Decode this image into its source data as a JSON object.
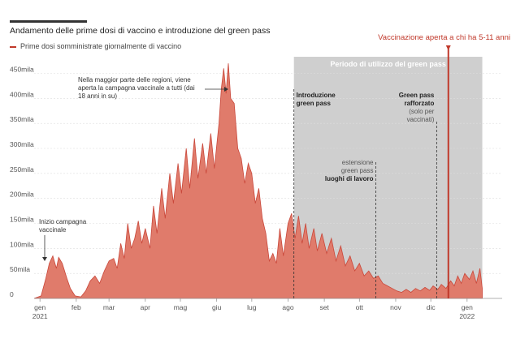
{
  "title": "Andamento delle prime dosi di vaccino e introduzione del green pass",
  "legend_label": "Prime dosi somministrate giornalmente di vaccino",
  "colors": {
    "area_fill": "#e07b6b",
    "area_stroke": "#c9473a",
    "greenpass_band": "#cfcfcf",
    "vaccination_line": "#c0392b",
    "axis_text": "#555555"
  },
  "chart_data": {
    "type": "area",
    "title": "Andamento delle prime dosi di vaccino e introduzione del green pass",
    "xlabel": "",
    "ylabel": "",
    "x_domain": [
      "2020-12-27",
      "2022-01-31"
    ],
    "ylim": [
      0,
      480000
    ],
    "y_ticks": [
      {
        "value": 0,
        "label": "0"
      },
      {
        "value": 50000,
        "label": "50mila"
      },
      {
        "value": 100000,
        "label": "100mila"
      },
      {
        "value": 150000,
        "label": "150mila"
      },
      {
        "value": 200000,
        "label": "200mila"
      },
      {
        "value": 250000,
        "label": "250mila"
      },
      {
        "value": 300000,
        "label": "300mila"
      },
      {
        "value": 350000,
        "label": "350mila"
      },
      {
        "value": 400000,
        "label": "400mila"
      },
      {
        "value": 450000,
        "label": "450mila"
      }
    ],
    "x_ticks": [
      {
        "date": "2021-01-01",
        "label": "gen",
        "sublabel": "2021"
      },
      {
        "date": "2021-02-01",
        "label": "feb",
        "sublabel": ""
      },
      {
        "date": "2021-03-01",
        "label": "mar",
        "sublabel": ""
      },
      {
        "date": "2021-04-01",
        "label": "apr",
        "sublabel": ""
      },
      {
        "date": "2021-05-01",
        "label": "mag",
        "sublabel": ""
      },
      {
        "date": "2021-06-01",
        "label": "giu",
        "sublabel": ""
      },
      {
        "date": "2021-07-01",
        "label": "lug",
        "sublabel": ""
      },
      {
        "date": "2021-08-01",
        "label": "ago",
        "sublabel": ""
      },
      {
        "date": "2021-09-01",
        "label": "set",
        "sublabel": ""
      },
      {
        "date": "2021-10-01",
        "label": "ott",
        "sublabel": ""
      },
      {
        "date": "2021-11-01",
        "label": "nov",
        "sublabel": ""
      },
      {
        "date": "2021-12-01",
        "label": "dic",
        "sublabel": ""
      },
      {
        "date": "2022-01-01",
        "label": "gen",
        "sublabel": "2022"
      }
    ],
    "series": [
      {
        "values": [
          [
            "2020-12-27",
            0
          ],
          [
            "2021-01-02",
            5000
          ],
          [
            "2021-01-06",
            40000
          ],
          [
            "2021-01-09",
            70000
          ],
          [
            "2021-01-12",
            85000
          ],
          [
            "2021-01-15",
            60000
          ],
          [
            "2021-01-17",
            82000
          ],
          [
            "2021-01-20",
            70000
          ],
          [
            "2021-01-24",
            40000
          ],
          [
            "2021-01-27",
            20000
          ],
          [
            "2021-01-31",
            5000
          ],
          [
            "2021-02-05",
            3000
          ],
          [
            "2021-02-09",
            15000
          ],
          [
            "2021-02-13",
            35000
          ],
          [
            "2021-02-17",
            45000
          ],
          [
            "2021-02-21",
            30000
          ],
          [
            "2021-02-25",
            55000
          ],
          [
            "2021-03-01",
            75000
          ],
          [
            "2021-03-05",
            80000
          ],
          [
            "2021-03-08",
            60000
          ],
          [
            "2021-03-11",
            110000
          ],
          [
            "2021-03-14",
            80000
          ],
          [
            "2021-03-17",
            150000
          ],
          [
            "2021-03-20",
            100000
          ],
          [
            "2021-03-23",
            120000
          ],
          [
            "2021-03-26",
            155000
          ],
          [
            "2021-03-29",
            110000
          ],
          [
            "2021-04-01",
            140000
          ],
          [
            "2021-04-05",
            100000
          ],
          [
            "2021-04-08",
            185000
          ],
          [
            "2021-04-11",
            130000
          ],
          [
            "2021-04-15",
            220000
          ],
          [
            "2021-04-18",
            160000
          ],
          [
            "2021-04-22",
            250000
          ],
          [
            "2021-04-25",
            190000
          ],
          [
            "2021-04-29",
            270000
          ],
          [
            "2021-05-02",
            210000
          ],
          [
            "2021-05-06",
            300000
          ],
          [
            "2021-05-09",
            220000
          ],
          [
            "2021-05-13",
            320000
          ],
          [
            "2021-05-16",
            240000
          ],
          [
            "2021-05-20",
            310000
          ],
          [
            "2021-05-23",
            250000
          ],
          [
            "2021-05-27",
            330000
          ],
          [
            "2021-05-30",
            260000
          ],
          [
            "2021-06-03",
            350000
          ],
          [
            "2021-06-05",
            420000
          ],
          [
            "2021-06-07",
            460000
          ],
          [
            "2021-06-09",
            410000
          ],
          [
            "2021-06-11",
            470000
          ],
          [
            "2021-06-13",
            400000
          ],
          [
            "2021-06-16",
            390000
          ],
          [
            "2021-06-19",
            300000
          ],
          [
            "2021-06-22",
            280000
          ],
          [
            "2021-06-25",
            230000
          ],
          [
            "2021-06-28",
            270000
          ],
          [
            "2021-07-01",
            250000
          ],
          [
            "2021-07-04",
            190000
          ],
          [
            "2021-07-07",
            220000
          ],
          [
            "2021-07-10",
            160000
          ],
          [
            "2021-07-13",
            130000
          ],
          [
            "2021-07-16",
            75000
          ],
          [
            "2021-07-19",
            90000
          ],
          [
            "2021-07-22",
            70000
          ],
          [
            "2021-07-25",
            140000
          ],
          [
            "2021-07-28",
            85000
          ],
          [
            "2021-08-01",
            150000
          ],
          [
            "2021-08-04",
            170000
          ],
          [
            "2021-08-07",
            120000
          ],
          [
            "2021-08-10",
            165000
          ],
          [
            "2021-08-13",
            110000
          ],
          [
            "2021-08-16",
            150000
          ],
          [
            "2021-08-19",
            100000
          ],
          [
            "2021-08-23",
            140000
          ],
          [
            "2021-08-26",
            95000
          ],
          [
            "2021-08-30",
            130000
          ],
          [
            "2021-09-03",
            90000
          ],
          [
            "2021-09-07",
            120000
          ],
          [
            "2021-09-11",
            75000
          ],
          [
            "2021-09-15",
            105000
          ],
          [
            "2021-09-19",
            65000
          ],
          [
            "2021-09-23",
            85000
          ],
          [
            "2021-09-27",
            55000
          ],
          [
            "2021-10-01",
            70000
          ],
          [
            "2021-10-05",
            45000
          ],
          [
            "2021-10-09",
            55000
          ],
          [
            "2021-10-13",
            40000
          ],
          [
            "2021-10-17",
            45000
          ],
          [
            "2021-10-21",
            30000
          ],
          [
            "2021-10-25",
            25000
          ],
          [
            "2021-10-29",
            20000
          ],
          [
            "2021-11-02",
            15000
          ],
          [
            "2021-11-06",
            12000
          ],
          [
            "2021-11-10",
            18000
          ],
          [
            "2021-11-14",
            12000
          ],
          [
            "2021-11-18",
            20000
          ],
          [
            "2021-11-22",
            15000
          ],
          [
            "2021-11-26",
            22000
          ],
          [
            "2021-11-30",
            16000
          ],
          [
            "2021-12-03",
            25000
          ],
          [
            "2021-12-07",
            18000
          ],
          [
            "2021-12-10",
            28000
          ],
          [
            "2021-12-14",
            20000
          ],
          [
            "2021-12-18",
            35000
          ],
          [
            "2021-12-21",
            25000
          ],
          [
            "2021-12-24",
            45000
          ],
          [
            "2021-12-27",
            30000
          ],
          [
            "2021-12-30",
            50000
          ],
          [
            "2022-01-03",
            38000
          ],
          [
            "2022-01-06",
            55000
          ],
          [
            "2022-01-09",
            30000
          ],
          [
            "2022-01-12",
            60000
          ],
          [
            "2022-01-14",
            20000
          ]
        ]
      }
    ],
    "highlight_band": {
      "start": "2021-08-06",
      "end": "2022-01-14",
      "label": "Periodo di utilizzo del green pass"
    },
    "events": [
      {
        "date": "2021-08-06",
        "lines": [
          "Introduzione",
          "green pass"
        ],
        "style": "dashed",
        "top_value": 170000
      },
      {
        "date": "2021-10-15",
        "lines": [
          "estensione",
          "green pass",
          "luoghi di lavoro"
        ],
        "style": "dashed",
        "top_value": 95000
      },
      {
        "date": "2021-12-06",
        "lines": [
          "Green pass",
          "rafforzato",
          "(solo per",
          "vaccinati)"
        ],
        "style": "dashed",
        "top_value": 30000
      },
      {
        "date": "2021-12-16",
        "lines": [
          "Vaccinazione aperta a chi ha 5-11 anni"
        ],
        "style": "solid"
      }
    ],
    "annotations": [
      {
        "date": "2021-06-04",
        "value": 430000,
        "lines": [
          "Nella maggior parte delle regioni, viene",
          "aperta la campagna vaccinale a tutti (dai",
          "18 anni in su)"
        ]
      },
      {
        "date": "2020-12-28",
        "value": 65000,
        "lines": [
          "Inizio campagna",
          "vaccinale"
        ]
      }
    ]
  }
}
